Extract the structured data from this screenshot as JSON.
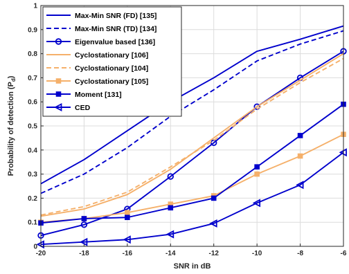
{
  "chart_data": {
    "type": "line",
    "xlabel": "SNR in dB",
    "ylabel_main": "Probability of detection (P",
    "ylabel_sub": "d",
    "ylabel_end": ")",
    "xlim": [
      -20,
      -6
    ],
    "ylim": [
      0,
      1
    ],
    "x": [
      -20,
      -18,
      -16,
      -14,
      -12,
      -10,
      -8,
      -6
    ],
    "x_ticks": [
      -20,
      -18,
      -16,
      -14,
      -12,
      -10,
      -8,
      -6
    ],
    "y_ticks": [
      0,
      0.1,
      0.2,
      0.3,
      0.4,
      0.5,
      0.6,
      0.7,
      0.8,
      0.9,
      1
    ],
    "grid": true,
    "legend_position": "top-left",
    "series": [
      {
        "name": "Max-Min SNR (FD) [135]",
        "color": "#0000CC",
        "dash": "solid",
        "marker": "none",
        "values": [
          0.26,
          0.36,
          0.48,
          0.6,
          0.7,
          0.81,
          0.86,
          0.915
        ]
      },
      {
        "name": "Max-Min SNR (TD) [134]",
        "color": "#0000CC",
        "dash": "dashed",
        "marker": "none",
        "values": [
          0.22,
          0.3,
          0.41,
          0.54,
          0.65,
          0.77,
          0.84,
          0.895
        ]
      },
      {
        "name": "Eigenvalue based [136]",
        "color": "#0000CC",
        "dash": "solid",
        "marker": "circle",
        "values": [
          0.045,
          0.09,
          0.155,
          0.29,
          0.43,
          0.58,
          0.7,
          0.81
        ]
      },
      {
        "name": "Cyclostationary [106]",
        "color": "#F5B06A",
        "dash": "solid",
        "marker": "none",
        "values": [
          0.125,
          0.155,
          0.215,
          0.32,
          0.45,
          0.58,
          0.69,
          0.8
        ]
      },
      {
        "name": "Cyclostationary [104]",
        "color": "#F5B06A",
        "dash": "dashed",
        "marker": "none",
        "values": [
          0.13,
          0.165,
          0.225,
          0.33,
          0.44,
          0.57,
          0.68,
          0.78
        ]
      },
      {
        "name": "Cyclostationary [105]",
        "color": "#F5B06A",
        "dash": "solid",
        "marker": "square",
        "values": [
          0.1,
          0.115,
          0.14,
          0.175,
          0.21,
          0.3,
          0.375,
          0.465
        ]
      },
      {
        "name": "Moment [131]",
        "color": "#0000CC",
        "dash": "solid",
        "marker": "square",
        "values": [
          0.097,
          0.115,
          0.12,
          0.16,
          0.2,
          0.33,
          0.46,
          0.59
        ]
      },
      {
        "name": "CED",
        "color": "#0000CC",
        "dash": "solid",
        "marker": "triangle-left",
        "values": [
          0.008,
          0.018,
          0.028,
          0.05,
          0.095,
          0.18,
          0.255,
          0.39
        ]
      }
    ]
  }
}
